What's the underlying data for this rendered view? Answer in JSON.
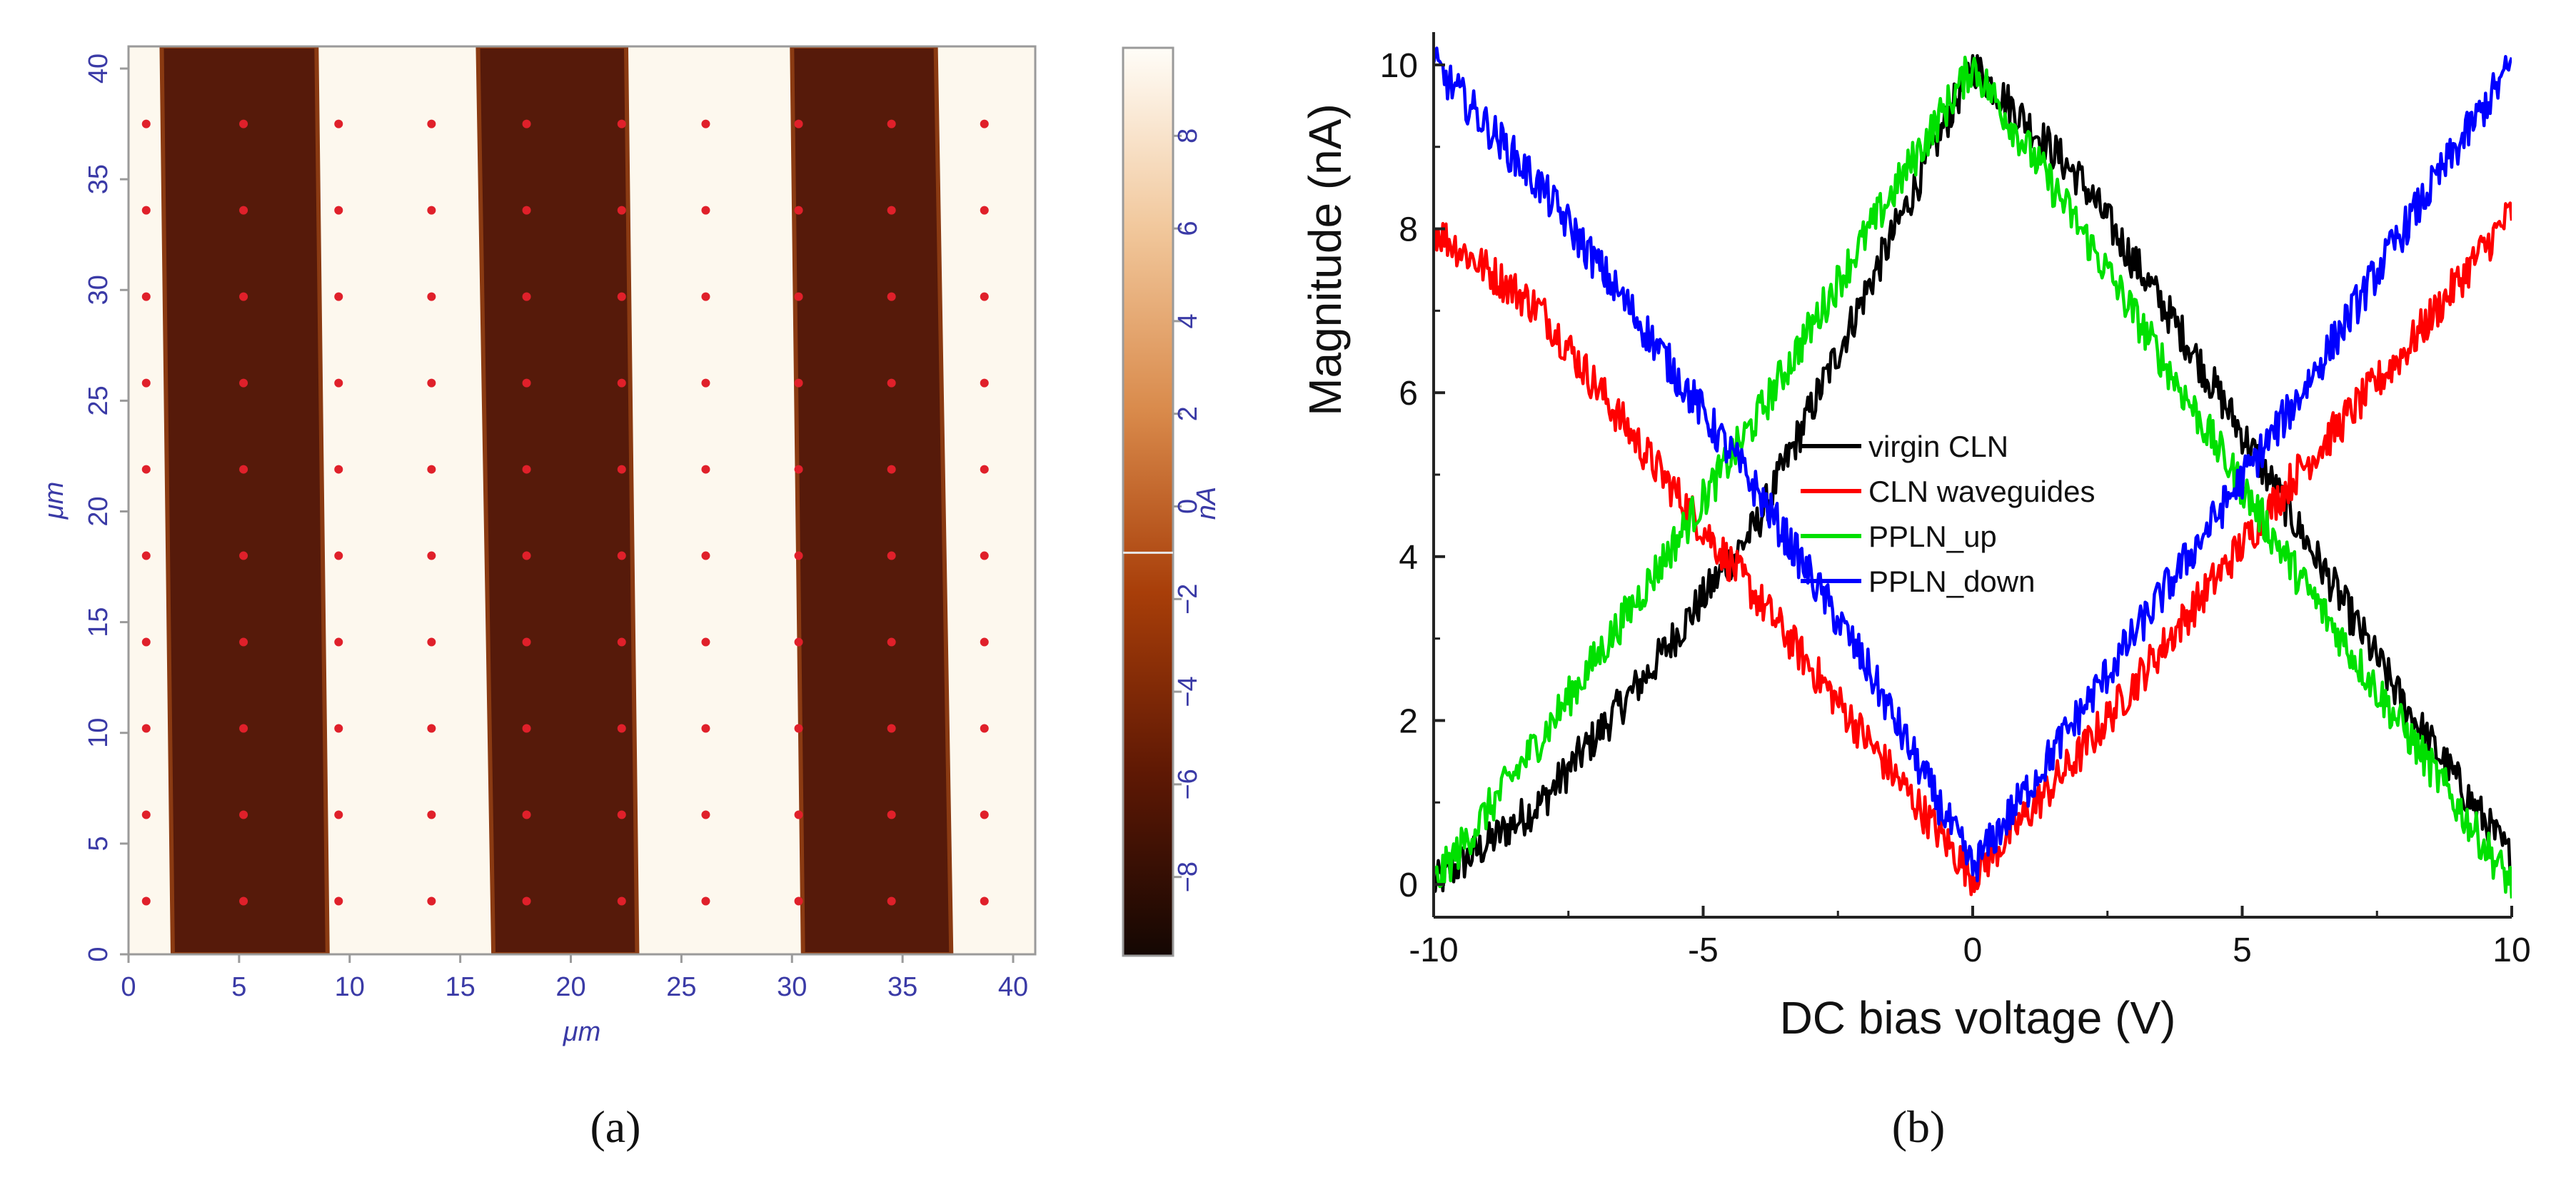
{
  "chart_data": [
    {
      "type": "heatmap",
      "panel_label": "(a)",
      "xlabel": "μm",
      "ylabel": "μm",
      "xlim": [
        0,
        41
      ],
      "ylim": [
        0,
        41
      ],
      "x_ticks": [
        0,
        5,
        10,
        15,
        20,
        25,
        30,
        35,
        40
      ],
      "y_ticks": [
        0,
        5,
        10,
        15,
        20,
        25,
        30,
        35,
        40
      ],
      "bands": [
        {
          "state": "low",
          "x_bottom_left": 2.0,
          "x_bottom_right": 9.0,
          "x_top_left": 1.5,
          "x_top_right": 8.5
        },
        {
          "state": "low",
          "x_bottom_left": 16.5,
          "x_bottom_right": 23.0,
          "x_top_left": 15.8,
          "x_top_right": 22.5
        },
        {
          "state": "low",
          "x_bottom_left": 30.5,
          "x_bottom_right": 37.2,
          "x_top_left": 30.0,
          "x_top_right": 36.5
        }
      ],
      "marker_grid": {
        "x": [
          0.8,
          5.2,
          9.5,
          13.7,
          18.0,
          22.3,
          26.1,
          30.3,
          34.5,
          38.7
        ],
        "y": [
          2.4,
          6.3,
          10.2,
          14.1,
          18.0,
          21.9,
          25.8,
          29.7,
          33.6,
          37.5
        ],
        "color": "#e0202a"
      },
      "colorbar": {
        "label": "nA",
        "min": -9.7,
        "max": 9.9,
        "ticks": [
          8,
          6,
          4,
          2,
          0,
          -2,
          -4,
          -6,
          -8
        ],
        "marker_value": -1.0,
        "colors": [
          "#140703",
          "#5e1804",
          "#a83e09",
          "#d98a4b",
          "#f1c79b",
          "#fffdf8"
        ]
      },
      "colors": {
        "high": "#fdf8ee",
        "low": "#561a0a",
        "axis_text": "#3a3aa6"
      }
    },
    {
      "type": "line",
      "panel_label": "(b)",
      "xlabel": "DC bias voltage (V)",
      "ylabel": "Magnitude (nA)",
      "xlim": [
        -10,
        10
      ],
      "ylim": [
        -0.4,
        10.4
      ],
      "x_ticks": [
        -10,
        -5,
        0,
        5,
        10
      ],
      "y_ticks": [
        0,
        2,
        4,
        6,
        8,
        10
      ],
      "legend_position": "center",
      "series": [
        {
          "name": "virgin CLN",
          "color": "#000000",
          "x": [
            -10,
            -8,
            -6,
            -4,
            -2,
            0,
            2,
            4,
            6,
            8,
            10
          ],
          "y": [
            0.0,
            1.0,
            2.6,
            4.4,
            7.2,
            10.0,
            8.6,
            6.6,
            4.4,
            2.2,
            0.3
          ]
        },
        {
          "name": "CLN waveguides",
          "color": "#ff0000",
          "x": [
            -10,
            -8,
            -6,
            -4,
            -2,
            0,
            2,
            4,
            6,
            8,
            10
          ],
          "y": [
            8.0,
            7.0,
            5.2,
            3.5,
            1.8,
            0.1,
            1.6,
            3.3,
            5.0,
            6.5,
            8.2
          ]
        },
        {
          "name": "PPLN_up",
          "color": "#00e000",
          "x": [
            -10,
            -8,
            -6,
            -4,
            -2,
            0,
            2,
            4,
            6,
            8,
            10
          ],
          "y": [
            0.0,
            1.8,
            3.7,
            5.7,
            7.9,
            10.0,
            8.0,
            5.9,
            3.8,
            1.9,
            0.0
          ]
        },
        {
          "name": "PPLN_down",
          "color": "#0000ff",
          "x": [
            -10,
            -8,
            -6,
            -4,
            -2,
            0,
            2,
            4,
            6,
            8,
            10
          ],
          "y": [
            10.0,
            8.5,
            6.7,
            4.8,
            2.7,
            0.2,
            2.1,
            4.0,
            5.9,
            8.0,
            10.0
          ]
        }
      ]
    }
  ]
}
